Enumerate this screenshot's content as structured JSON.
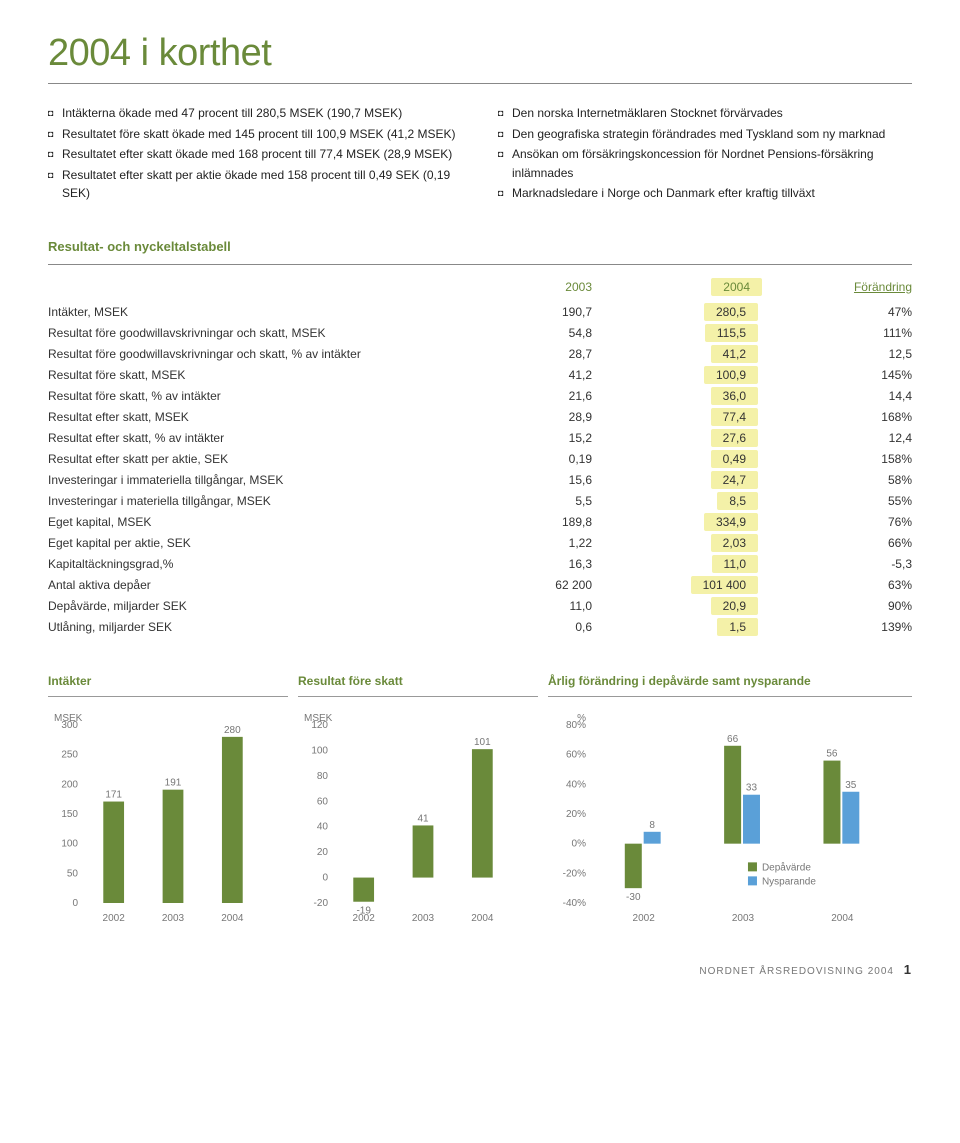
{
  "page_title": "2004 i korthet",
  "bullets_left": [
    "Intäkterna ökade med 47 procent till 280,5 MSEK (190,7 MSEK)",
    "Resultatet före skatt ökade med 145 procent till 100,9 MSEK (41,2 MSEK)",
    "Resultatet efter skatt ökade med 168 procent till 77,4 MSEK (28,9 MSEK)",
    "Resultatet efter skatt per aktie ökade med 158 procent till 0,49 SEK (0,19 SEK)"
  ],
  "bullets_right": [
    "Den norska Internetmäklaren Stocknet förvärvades",
    "Den geografiska strategin förändrades med Tyskland som ny marknad",
    "Ansökan om försäkringskoncession för Nordnet Pensions-försäkring inlämnades",
    "Marknadsledare i Norge och Danmark efter kraftig tillväxt"
  ],
  "table": {
    "title": "Resultat- och nyckeltalstabell",
    "headers": [
      "",
      "2003",
      "2004",
      "Förändring"
    ],
    "rows": [
      [
        "Intäkter, MSEK",
        "190,7",
        "280,5",
        "47%"
      ],
      [
        "Resultat före goodwillavskrivningar och skatt, MSEK",
        "54,8",
        "115,5",
        "111%"
      ],
      [
        "Resultat före goodwillavskrivningar och skatt, % av intäkter",
        "28,7",
        "41,2",
        "12,5"
      ],
      [
        "Resultat före skatt, MSEK",
        "41,2",
        "100,9",
        "145%"
      ],
      [
        "Resultat före skatt, % av intäkter",
        "21,6",
        "36,0",
        "14,4"
      ],
      [
        "Resultat efter skatt, MSEK",
        "28,9",
        "77,4",
        "168%"
      ],
      [
        "Resultat efter skatt, % av intäkter",
        "15,2",
        "27,6",
        "12,4"
      ],
      [
        "Resultat efter skatt per aktie, SEK",
        "0,19",
        "0,49",
        "158%"
      ],
      [
        "Investeringar i immateriella tillgångar, MSEK",
        "15,6",
        "24,7",
        "58%"
      ],
      [
        "Investeringar i materiella tillgångar, MSEK",
        "5,5",
        "8,5",
        "55%"
      ],
      [
        "Eget kapital, MSEK",
        "189,8",
        "334,9",
        "76%"
      ],
      [
        "Eget kapital per aktie, SEK",
        "1,22",
        "2,03",
        "66%"
      ],
      [
        "Kapitaltäckningsgrad,%",
        "16,3",
        "11,0",
        "-5,3"
      ],
      [
        "Antal aktiva depåer",
        "62 200",
        "101 400",
        "63%"
      ],
      [
        "Depåvärde, miljarder SEK",
        "11,0",
        "20,9",
        "90%"
      ],
      [
        "Utlåning, miljarder SEK",
        "0,6",
        "1,5",
        "139%"
      ]
    ]
  },
  "chart1": {
    "title": "Intäkter",
    "type": "bar",
    "unit": "MSEK",
    "categories": [
      "2002",
      "2003",
      "2004"
    ],
    "values": [
      171,
      191,
      280
    ],
    "ylim": [
      0,
      300
    ],
    "ytick_step": 50,
    "bar_color": "#6a8a3a",
    "label_fontsize": 10,
    "axis_color": "#888",
    "text_color": "#777"
  },
  "chart2": {
    "title": "Resultat före skatt",
    "type": "bar",
    "unit": "MSEK",
    "categories": [
      "2002",
      "2003",
      "2004"
    ],
    "values": [
      -19,
      41,
      101
    ],
    "ylim": [
      -20,
      120
    ],
    "ytick_step": 20,
    "bar_color": "#6a8a3a",
    "label_fontsize": 10,
    "axis_color": "#888",
    "text_color": "#777"
  },
  "chart3": {
    "title": "Årlig förändring i depåvärde samt nysparande",
    "type": "grouped-bar",
    "unit": "%",
    "categories": [
      "2002",
      "2003",
      "2004"
    ],
    "series": [
      {
        "name": "Depåvärde",
        "color": "#6a8a3a",
        "values": [
          -30,
          66,
          56
        ]
      },
      {
        "name": "Nysparande",
        "color": "#5aa0d8",
        "values": [
          8,
          33,
          35
        ]
      }
    ],
    "ylim": [
      -40,
      80
    ],
    "ytick_step": 20,
    "label_fontsize": 10,
    "axis_color": "#888",
    "text_color": "#777",
    "legend": {
      "depavarde": "Depåvärde",
      "nysparande": "Nysparande"
    }
  },
  "footer": {
    "text": "NORDNET ÅRSREDOVISNING 2004",
    "page": "1"
  }
}
